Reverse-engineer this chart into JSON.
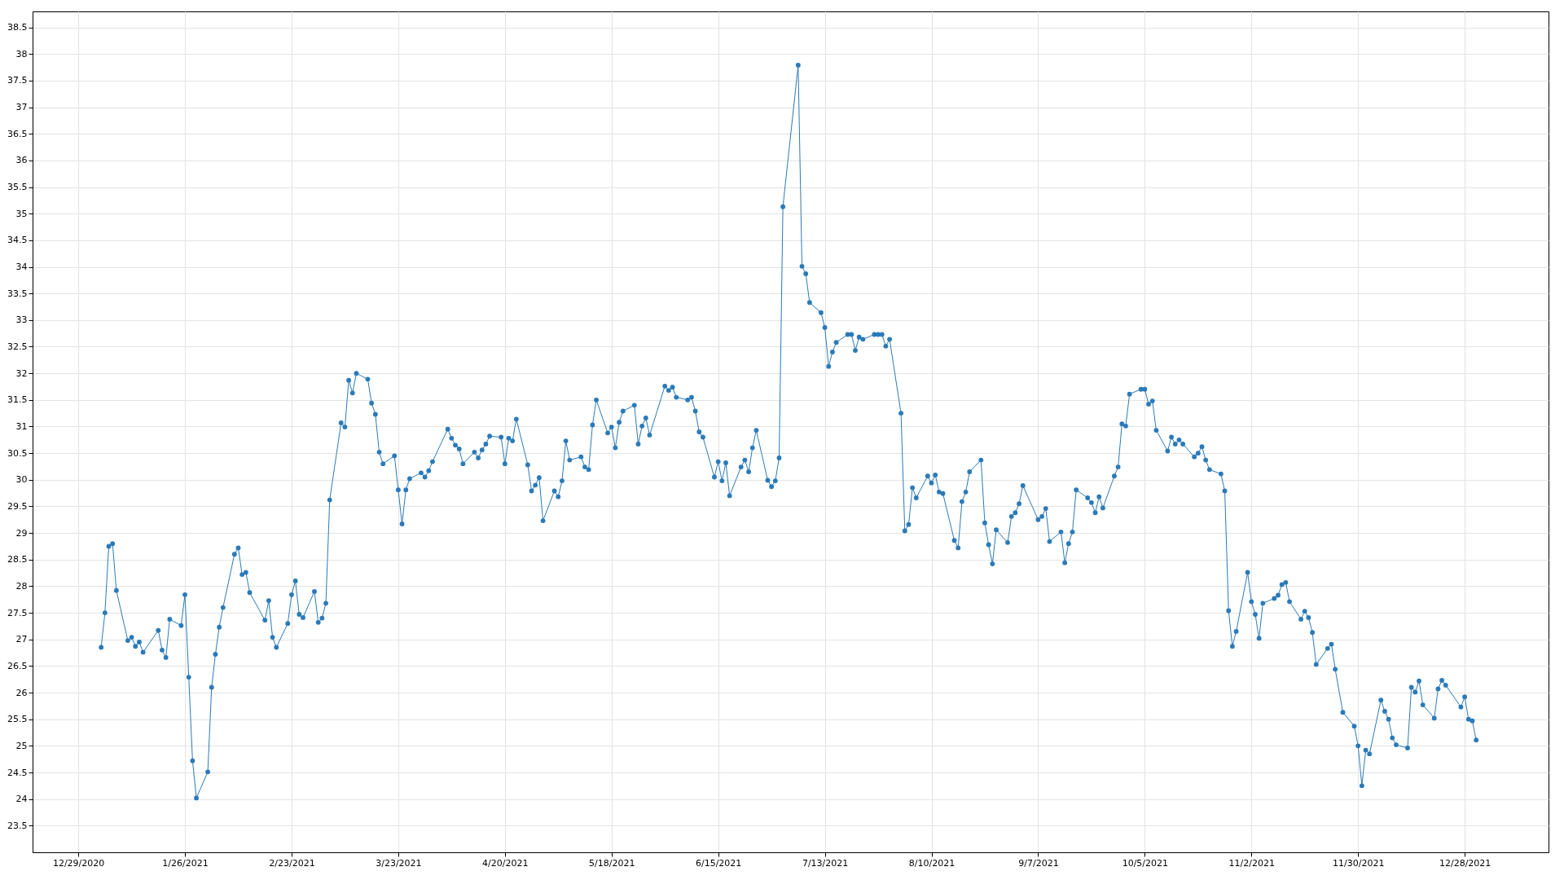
{
  "chart_data": {
    "type": "line",
    "x": [
      "2021-01-04",
      "2021-01-05",
      "2021-01-06",
      "2021-01-07",
      "2021-01-08",
      "2021-01-11",
      "2021-01-12",
      "2021-01-13",
      "2021-01-14",
      "2021-01-15",
      "2021-01-19",
      "2021-01-20",
      "2021-01-21",
      "2021-01-22",
      "2021-01-25",
      "2021-01-26",
      "2021-01-27",
      "2021-01-28",
      "2021-01-29",
      "2021-02-01",
      "2021-02-02",
      "2021-02-03",
      "2021-02-04",
      "2021-02-05",
      "2021-02-08",
      "2021-02-09",
      "2021-02-10",
      "2021-02-11",
      "2021-02-12",
      "2021-02-16",
      "2021-02-17",
      "2021-02-18",
      "2021-02-19",
      "2021-02-22",
      "2021-02-23",
      "2021-02-24",
      "2021-02-25",
      "2021-02-26",
      "2021-03-01",
      "2021-03-02",
      "2021-03-03",
      "2021-03-04",
      "2021-03-05",
      "2021-03-08",
      "2021-03-09",
      "2021-03-10",
      "2021-03-11",
      "2021-03-12",
      "2021-03-15",
      "2021-03-16",
      "2021-03-17",
      "2021-03-18",
      "2021-03-19",
      "2021-03-22",
      "2021-03-23",
      "2021-03-24",
      "2021-03-25",
      "2021-03-26",
      "2021-03-29",
      "2021-03-30",
      "2021-03-31",
      "2021-04-01",
      "2021-04-05",
      "2021-04-06",
      "2021-04-07",
      "2021-04-08",
      "2021-04-09",
      "2021-04-12",
      "2021-04-13",
      "2021-04-14",
      "2021-04-15",
      "2021-04-16",
      "2021-04-19",
      "2021-04-20",
      "2021-04-21",
      "2021-04-22",
      "2021-04-23",
      "2021-04-26",
      "2021-04-27",
      "2021-04-28",
      "2021-04-29",
      "2021-04-30",
      "2021-05-03",
      "2021-05-04",
      "2021-05-05",
      "2021-05-06",
      "2021-05-07",
      "2021-05-10",
      "2021-05-11",
      "2021-05-12",
      "2021-05-13",
      "2021-05-14",
      "2021-05-17",
      "2021-05-18",
      "2021-05-19",
      "2021-05-20",
      "2021-05-21",
      "2021-05-24",
      "2021-05-25",
      "2021-05-26",
      "2021-05-27",
      "2021-05-28",
      "2021-06-01",
      "2021-06-02",
      "2021-06-03",
      "2021-06-04",
      "2021-06-07",
      "2021-06-08",
      "2021-06-09",
      "2021-06-10",
      "2021-06-11",
      "2021-06-14",
      "2021-06-15",
      "2021-06-16",
      "2021-06-17",
      "2021-06-18",
      "2021-06-21",
      "2021-06-22",
      "2021-06-23",
      "2021-06-24",
      "2021-06-25",
      "2021-06-28",
      "2021-06-29",
      "2021-06-30",
      "2021-07-01",
      "2021-07-02",
      "2021-07-06",
      "2021-07-07",
      "2021-07-08",
      "2021-07-09",
      "2021-07-12",
      "2021-07-13",
      "2021-07-14",
      "2021-07-15",
      "2021-07-16",
      "2021-07-19",
      "2021-07-20",
      "2021-07-21",
      "2021-07-22",
      "2021-07-23",
      "2021-07-26",
      "2021-07-27",
      "2021-07-28",
      "2021-07-29",
      "2021-07-30",
      "2021-08-02",
      "2021-08-03",
      "2021-08-04",
      "2021-08-05",
      "2021-08-06",
      "2021-08-09",
      "2021-08-10",
      "2021-08-11",
      "2021-08-12",
      "2021-08-13",
      "2021-08-16",
      "2021-08-17",
      "2021-08-18",
      "2021-08-19",
      "2021-08-20",
      "2021-08-23",
      "2021-08-24",
      "2021-08-25",
      "2021-08-26",
      "2021-08-27",
      "2021-08-30",
      "2021-08-31",
      "2021-09-01",
      "2021-09-02",
      "2021-09-03",
      "2021-09-07",
      "2021-09-08",
      "2021-09-09",
      "2021-09-10",
      "2021-09-13",
      "2021-09-14",
      "2021-09-15",
      "2021-09-16",
      "2021-09-17",
      "2021-09-20",
      "2021-09-21",
      "2021-09-22",
      "2021-09-23",
      "2021-09-24",
      "2021-09-27",
      "2021-09-28",
      "2021-09-29",
      "2021-09-30",
      "2021-10-01",
      "2021-10-04",
      "2021-10-05",
      "2021-10-06",
      "2021-10-07",
      "2021-10-08",
      "2021-10-11",
      "2021-10-12",
      "2021-10-13",
      "2021-10-14",
      "2021-10-15",
      "2021-10-18",
      "2021-10-19",
      "2021-10-20",
      "2021-10-21",
      "2021-10-22",
      "2021-10-25",
      "2021-10-26",
      "2021-10-27",
      "2021-10-28",
      "2021-10-29",
      "2021-11-01",
      "2021-11-02",
      "2021-11-03",
      "2021-11-04",
      "2021-11-05",
      "2021-11-08",
      "2021-11-09",
      "2021-11-10",
      "2021-11-11",
      "2021-11-12",
      "2021-11-15",
      "2021-11-16",
      "2021-11-17",
      "2021-11-18",
      "2021-11-19",
      "2021-11-22",
      "2021-11-23",
      "2021-11-24",
      "2021-11-26",
      "2021-11-29",
      "2021-11-30",
      "2021-12-01",
      "2021-12-02",
      "2021-12-03",
      "2021-12-06",
      "2021-12-07",
      "2021-12-08",
      "2021-12-09",
      "2021-12-10",
      "2021-12-13",
      "2021-12-14",
      "2021-12-15",
      "2021-12-16",
      "2021-12-17",
      "2021-12-20",
      "2021-12-21",
      "2021-12-22",
      "2021-12-23",
      "2021-12-27",
      "2021-12-28",
      "2021-12-29",
      "2021-12-30",
      "2021-12-31"
    ],
    "series": [
      {
        "color": "#2a7ab9",
        "values": [
          26.85,
          27.5,
          28.75,
          28.8,
          27.92,
          26.98,
          27.04,
          26.87,
          26.95,
          26.76,
          27.17,
          26.8,
          26.66,
          27.38,
          27.26,
          27.84,
          26.29,
          24.72,
          24.02,
          24.51,
          26.1,
          26.72,
          27.23,
          27.6,
          28.6,
          28.72,
          28.22,
          28.26,
          27.88,
          27.36,
          27.73,
          27.04,
          26.85,
          27.3,
          27.84,
          28.1,
          27.47,
          27.41,
          27.9,
          27.32,
          27.4,
          27.68,
          29.62,
          31.07,
          30.99,
          31.87,
          31.63,
          32.0,
          31.89,
          31.44,
          31.23,
          30.52,
          30.3,
          30.45,
          29.81,
          29.17,
          29.81,
          30.02,
          30.13,
          30.05,
          30.17,
          30.34,
          30.95,
          30.78,
          30.65,
          30.58,
          30.3,
          30.52,
          30.41,
          30.56,
          30.67,
          30.82,
          30.8,
          30.3,
          30.78,
          30.73,
          31.14,
          30.28,
          29.79,
          29.9,
          30.04,
          29.23,
          29.79,
          29.68,
          29.98,
          30.73,
          30.37,
          30.43,
          30.24,
          30.19,
          31.03,
          31.5,
          30.88,
          30.99,
          30.6,
          31.08,
          31.29,
          31.4,
          30.67,
          31.01,
          31.16,
          30.84,
          31.76,
          31.68,
          31.74,
          31.55,
          31.5,
          31.55,
          31.29,
          30.9,
          30.8,
          30.05,
          30.34,
          29.98,
          30.32,
          29.7,
          30.24,
          30.37,
          30.15,
          30.6,
          30.93,
          29.99,
          29.87,
          29.98,
          30.41,
          35.13,
          37.79,
          34.01,
          33.87,
          33.33,
          33.14,
          32.86,
          32.13,
          32.4,
          32.58,
          32.73,
          32.73,
          32.43,
          32.68,
          32.64,
          32.73,
          32.73,
          32.73,
          32.51,
          32.64,
          31.25,
          29.04,
          29.16,
          29.85,
          29.66,
          30.07,
          29.94,
          30.09,
          29.77,
          29.74,
          28.86,
          28.72,
          29.59,
          29.77,
          30.15,
          30.37,
          29.19,
          28.78,
          28.42,
          29.06,
          28.82,
          29.31,
          29.38,
          29.55,
          29.89,
          29.25,
          29.31,
          29.46,
          28.84,
          29.02,
          28.44,
          28.8,
          29.02,
          29.81,
          29.66,
          29.57,
          29.38,
          29.68,
          29.47,
          30.07,
          30.24,
          31.05,
          31.01,
          31.61,
          31.7,
          31.7,
          31.42,
          31.48,
          30.93,
          30.54,
          30.8,
          30.67,
          30.75,
          30.67,
          30.43,
          30.5,
          30.62,
          30.37,
          30.19,
          30.11,
          29.79,
          27.54,
          26.87,
          27.15,
          28.26,
          27.71,
          27.47,
          27.02,
          27.68,
          27.77,
          27.83,
          28.03,
          28.07,
          27.71,
          27.38,
          27.53,
          27.41,
          27.13,
          26.53,
          26.83,
          26.91,
          26.44,
          25.63,
          25.37,
          25.0,
          24.25,
          24.92,
          24.85,
          25.86,
          25.65,
          25.5,
          25.15,
          25.02,
          24.96,
          26.1,
          26.01,
          26.22,
          25.77,
          25.52,
          26.07,
          26.23,
          26.14,
          25.73,
          25.92,
          25.5,
          25.47,
          25.11
        ]
      }
    ],
    "xlim": [
      "2020-12-17",
      "2022-01-19"
    ],
    "xticks": [
      {
        "value": "2020-12-29",
        "label": "12/29/2020"
      },
      {
        "value": "2021-01-26",
        "label": "1/26/2021"
      },
      {
        "value": "2021-02-23",
        "label": "2/23/2021"
      },
      {
        "value": "2021-03-23",
        "label": "3/23/2021"
      },
      {
        "value": "2021-04-20",
        "label": "4/20/2021"
      },
      {
        "value": "2021-05-18",
        "label": "5/18/2021"
      },
      {
        "value": "2021-06-15",
        "label": "6/15/2021"
      },
      {
        "value": "2021-07-13",
        "label": "7/13/2021"
      },
      {
        "value": "2021-08-10",
        "label": "8/10/2021"
      },
      {
        "value": "2021-09-07",
        "label": "9/7/2021"
      },
      {
        "value": "2021-10-05",
        "label": "10/5/2021"
      },
      {
        "value": "2021-11-02",
        "label": "11/2/2021"
      },
      {
        "value": "2021-11-30",
        "label": "11/30/2021"
      },
      {
        "value": "2021-12-28",
        "label": "12/28/2021"
      }
    ],
    "ylim": [
      23,
      38.8
    ],
    "yticks": [
      23.5,
      24,
      24.5,
      25,
      25.5,
      26,
      26.5,
      27,
      27.5,
      28,
      28.5,
      29,
      29.5,
      30,
      30.5,
      31,
      31.5,
      32,
      32.5,
      33,
      33.5,
      34,
      34.5,
      35,
      35.5,
      36,
      36.5,
      37,
      37.5,
      38,
      38.5
    ],
    "grid": true,
    "marker": "circle",
    "line_style": "solid"
  }
}
